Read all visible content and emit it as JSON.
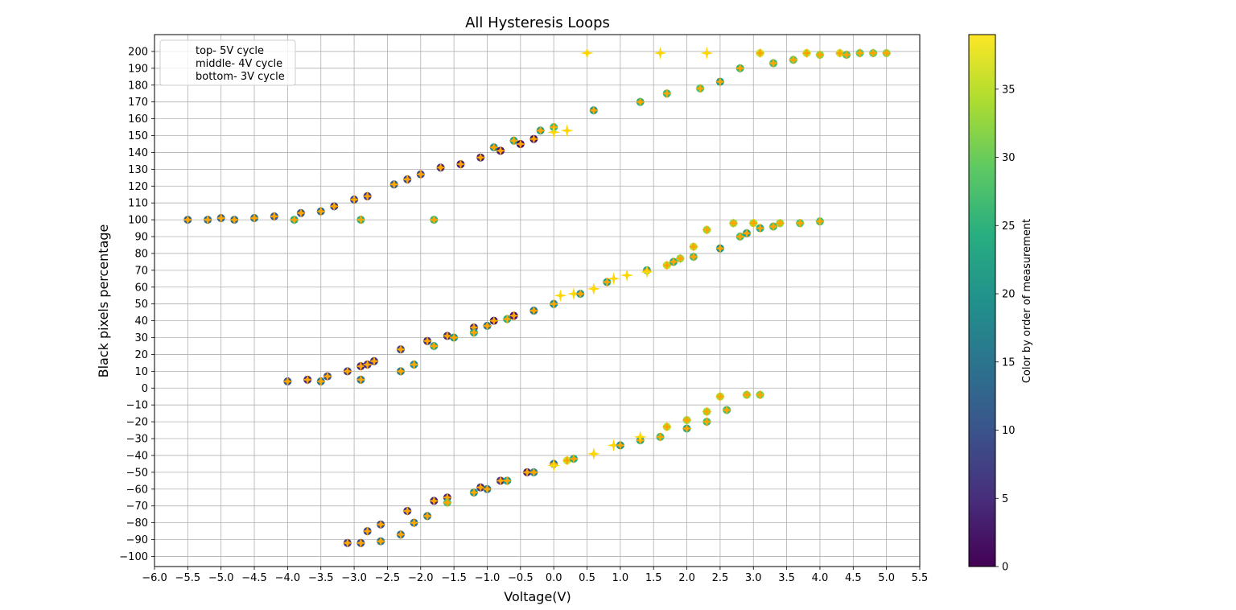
{
  "chart_data": {
    "type": "scatter",
    "title": "All Hysteresis Loops",
    "xlabel": "Voltage(V)",
    "ylabel": "Black pixels percentage",
    "xlim": [
      -6.0,
      5.5
    ],
    "ylim": [
      -106,
      210
    ],
    "x_ticks": [
      "−6.0",
      "−5.5",
      "−5.0",
      "−4.5",
      "−4.0",
      "−3.5",
      "−3.0",
      "−2.5",
      "−2.0",
      "−1.5",
      "−1.0",
      "−0.5",
      "0.0",
      "0.5",
      "1.0",
      "1.5",
      "2.0",
      "2.5",
      "3.0",
      "3.5",
      "4.0",
      "4.5",
      "5.0",
      "5.5"
    ],
    "y_ticks": [
      "−100",
      "−90",
      "−80",
      "−70",
      "−60",
      "−50",
      "−40",
      "−30",
      "−20",
      "−10",
      "0",
      "10",
      "20",
      "30",
      "40",
      "50",
      "60",
      "70",
      "80",
      "90",
      "100",
      "110",
      "120",
      "130",
      "140",
      "150",
      "160",
      "170",
      "180",
      "190",
      "200"
    ],
    "grid": true,
    "legend": {
      "placement": "top-left",
      "entries": [
        "top- 5V cycle",
        "middle- 4V cycle",
        "bottom- 3V cycle"
      ]
    },
    "colorbar": {
      "label": "Color by order of measurement",
      "range": [
        0,
        39
      ],
      "ticks": [
        "0",
        "5",
        "10",
        "15",
        "20",
        "25",
        "30",
        "35"
      ],
      "colormap": "viridis"
    },
    "marker_colors": {
      "cross": "#ffa500",
      "cross_late": "#ffd700"
    },
    "series": [
      {
        "points": [
          [
            -5.5,
            100,
            13
          ],
          [
            -5.2,
            100,
            14
          ],
          [
            -5.0,
            101,
            13
          ],
          [
            -4.8,
            100,
            14
          ],
          [
            -4.5,
            101,
            15
          ],
          [
            -4.2,
            102,
            11
          ],
          [
            -3.9,
            100,
            24
          ],
          [
            -3.8,
            104,
            10
          ],
          [
            -3.5,
            105,
            13
          ],
          [
            -3.3,
            108,
            8
          ],
          [
            -3.0,
            112,
            9
          ],
          [
            -2.9,
            100,
            25
          ],
          [
            -2.8,
            114,
            6
          ],
          [
            -2.4,
            121,
            12
          ],
          [
            -2.2,
            124,
            8
          ],
          [
            -2.0,
            127,
            8
          ],
          [
            -1.7,
            131,
            5
          ],
          [
            -1.4,
            133,
            3
          ],
          [
            -1.1,
            137,
            4
          ],
          [
            -0.9,
            143,
            20
          ],
          [
            -0.8,
            141,
            2
          ],
          [
            -0.6,
            147,
            23
          ],
          [
            -0.5,
            145,
            1
          ],
          [
            -0.3,
            148,
            3
          ],
          [
            -0.2,
            153,
            22
          ],
          [
            0.0,
            155,
            27
          ],
          [
            0.0,
            152,
            39
          ],
          [
            0.2,
            153,
            39
          ],
          [
            0.5,
            199,
            39
          ],
          [
            0.6,
            165,
            21
          ],
          [
            1.3,
            170,
            25
          ],
          [
            1.6,
            199,
            38
          ],
          [
            1.7,
            175,
            26
          ],
          [
            2.2,
            178,
            28
          ],
          [
            2.3,
            199,
            38
          ],
          [
            2.5,
            182,
            22
          ],
          [
            2.8,
            190,
            26
          ],
          [
            3.1,
            199,
            36
          ],
          [
            3.3,
            193,
            27
          ],
          [
            3.6,
            195,
            29
          ],
          [
            3.8,
            199,
            35
          ],
          [
            4.0,
            198,
            32
          ],
          [
            4.3,
            199,
            36
          ],
          [
            4.4,
            198,
            28
          ],
          [
            4.6,
            199,
            29
          ],
          [
            4.8,
            199,
            30
          ],
          [
            5.0,
            199,
            32
          ],
          [
            -1.8,
            100,
            26
          ]
        ]
      },
      {
        "points": [
          [
            -4.0,
            4,
            10
          ],
          [
            -3.7,
            5,
            5
          ],
          [
            -3.5,
            4,
            15
          ],
          [
            -3.4,
            7,
            8
          ],
          [
            -3.1,
            10,
            7
          ],
          [
            -2.9,
            13,
            4
          ],
          [
            -2.9,
            5,
            15
          ],
          [
            -2.8,
            14,
            5
          ],
          [
            -2.7,
            16,
            6
          ],
          [
            -2.3,
            23,
            8
          ],
          [
            -2.3,
            10,
            16
          ],
          [
            -2.1,
            14,
            18
          ],
          [
            -1.9,
            28,
            5
          ],
          [
            -1.8,
            25,
            23
          ],
          [
            -1.6,
            31,
            5
          ],
          [
            -1.5,
            30,
            20
          ],
          [
            -1.2,
            36,
            5
          ],
          [
            -1.2,
            33,
            23
          ],
          [
            -1.0,
            37,
            16
          ],
          [
            -0.9,
            40,
            3
          ],
          [
            -0.7,
            41,
            24
          ],
          [
            -0.6,
            43,
            2
          ],
          [
            -0.3,
            46,
            16
          ],
          [
            0.0,
            50,
            19
          ],
          [
            0.1,
            55,
            39
          ],
          [
            0.3,
            56,
            37
          ],
          [
            0.4,
            56,
            21
          ],
          [
            0.6,
            59,
            37
          ],
          [
            0.8,
            63,
            22
          ],
          [
            0.9,
            65,
            38
          ],
          [
            1.1,
            67,
            37
          ],
          [
            1.4,
            70,
            23
          ],
          [
            1.4,
            69,
            37
          ],
          [
            1.7,
            73,
            35
          ],
          [
            1.8,
            75,
            25
          ],
          [
            1.9,
            77,
            33
          ],
          [
            2.1,
            78,
            27
          ],
          [
            2.1,
            84,
            35
          ],
          [
            2.3,
            94,
            33
          ],
          [
            2.5,
            83,
            20
          ],
          [
            2.7,
            98,
            33
          ],
          [
            2.8,
            90,
            27
          ],
          [
            2.9,
            92,
            22
          ],
          [
            3.0,
            98,
            34
          ],
          [
            3.1,
            95,
            24
          ],
          [
            3.3,
            96,
            27
          ],
          [
            3.4,
            98,
            33
          ],
          [
            3.7,
            98,
            29
          ],
          [
            4.0,
            99,
            28
          ]
        ]
      },
      {
        "points": [
          [
            -3.1,
            -92,
            7
          ],
          [
            -2.9,
            -92,
            9
          ],
          [
            -2.8,
            -85,
            8
          ],
          [
            -2.6,
            -81,
            9
          ],
          [
            -2.6,
            -91,
            16
          ],
          [
            -2.3,
            -87,
            14
          ],
          [
            -2.2,
            -73,
            6
          ],
          [
            -2.1,
            -80,
            15
          ],
          [
            -1.9,
            -76,
            16
          ],
          [
            -1.8,
            -67,
            4
          ],
          [
            -1.6,
            -65,
            4
          ],
          [
            -1.6,
            -68,
            28
          ],
          [
            -1.2,
            -62,
            20
          ],
          [
            -1.1,
            -59,
            5
          ],
          [
            -1.0,
            -60,
            16
          ],
          [
            -0.8,
            -55,
            5
          ],
          [
            -0.7,
            -55,
            22
          ],
          [
            -0.4,
            -50,
            4
          ],
          [
            -0.3,
            -50,
            18
          ],
          [
            0.0,
            -45,
            15
          ],
          [
            0.0,
            -46,
            39
          ],
          [
            0.2,
            -43,
            36
          ],
          [
            0.3,
            -42,
            24
          ],
          [
            0.6,
            -39,
            37
          ],
          [
            0.9,
            -34,
            37
          ],
          [
            1.0,
            -34,
            20
          ],
          [
            1.3,
            -31,
            24
          ],
          [
            1.3,
            -29,
            37
          ],
          [
            1.6,
            -29,
            27
          ],
          [
            1.7,
            -23,
            35
          ],
          [
            2.0,
            -19,
            33
          ],
          [
            2.0,
            -24,
            24
          ],
          [
            2.3,
            -20,
            27
          ],
          [
            2.3,
            -14,
            33
          ],
          [
            2.5,
            -5,
            34
          ],
          [
            2.6,
            -13,
            27
          ],
          [
            2.9,
            -4,
            32
          ],
          [
            3.1,
            -4,
            31
          ]
        ]
      }
    ]
  }
}
